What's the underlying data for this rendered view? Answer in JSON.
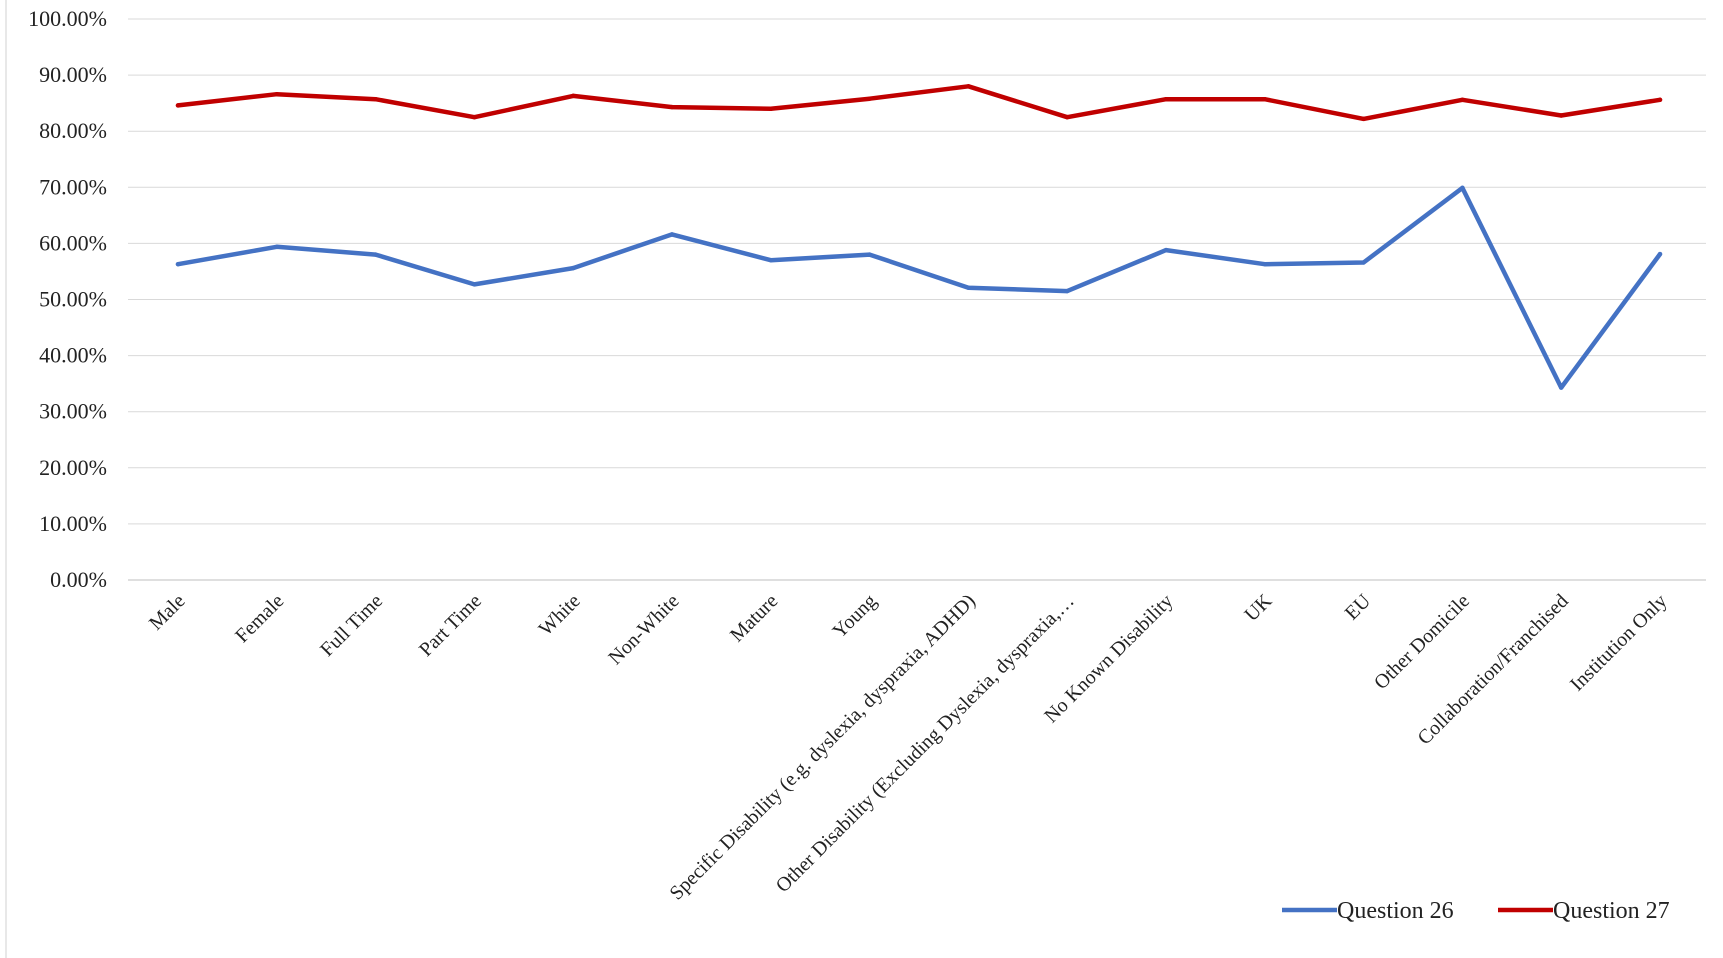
{
  "chart_data": {
    "type": "line",
    "categories": [
      "Male",
      "Female",
      "Full Time",
      "Part Time",
      "White",
      "Non-White",
      "Mature",
      "Young",
      "Specific Disability (e.g. dyslexia, dyspraxia, ADHD)",
      "Other Disability (Excluding Dyslexia, dyspraxia,…",
      "No Known Disability",
      "UK",
      "EU",
      "Other Domicile",
      "Collaboration/Franchised",
      "Institution Only"
    ],
    "series": [
      {
        "name": "Question 26",
        "color": "#4472c4",
        "values": [
          0.563,
          0.594,
          0.58,
          0.527,
          0.556,
          0.616,
          0.57,
          0.58,
          0.521,
          0.515,
          0.588,
          0.563,
          0.566,
          0.699,
          0.343,
          0.581
        ]
      },
      {
        "name": "Question 27",
        "color": "#c00000",
        "values": [
          0.846,
          0.866,
          0.857,
          0.825,
          0.863,
          0.843,
          0.84,
          0.858,
          0.88,
          0.825,
          0.857,
          0.857,
          0.822,
          0.856,
          0.828,
          0.856
        ]
      }
    ],
    "yticks": [
      "0.00%",
      "10.00%",
      "20.00%",
      "30.00%",
      "40.00%",
      "50.00%",
      "60.00%",
      "70.00%",
      "80.00%",
      "90.00%",
      "100.00%"
    ],
    "ylim": [
      0,
      1
    ],
    "grid": true,
    "legend_position": "bottom-right",
    "title": "",
    "xlabel": "",
    "ylabel": ""
  }
}
